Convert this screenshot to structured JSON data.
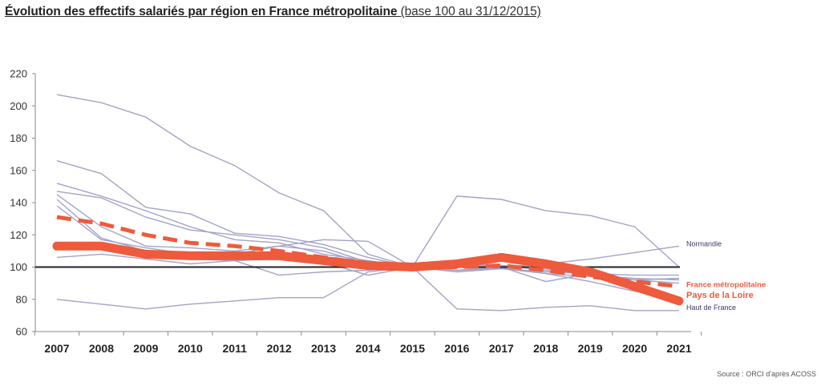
{
  "title": {
    "main": "Évolution des effectifs salariés par région en France métropolitaine",
    "sub": "(base 100 au 31/12/2015)"
  },
  "source": "Source : ORCI d'après ACOSS",
  "colors": {
    "region": "#a3a3c8",
    "highlight": "#ee5a3c",
    "baseline": "#222222",
    "label_region": "#3a3a6a"
  },
  "chart_data": {
    "type": "line",
    "x": [
      "2007",
      "2008",
      "2009",
      "2010",
      "2011",
      "2012",
      "2013",
      "2014",
      "2015",
      "2016",
      "2017",
      "2018",
      "2019",
      "2020",
      "2021"
    ],
    "ylim": [
      60,
      220
    ],
    "yticks": [
      60,
      80,
      100,
      120,
      140,
      160,
      180,
      200,
      220
    ],
    "grid": false,
    "reference_line": 100,
    "series": [
      {
        "name": "",
        "style": "region",
        "values": [
          207,
          202,
          193,
          175,
          163,
          146,
          135,
          108,
          100,
          97,
          99,
          96,
          94,
          92,
          93
        ]
      },
      {
        "name": "",
        "style": "region",
        "values": [
          166,
          158,
          137,
          133,
          121,
          119,
          114,
          106,
          100,
          144,
          142,
          135,
          132,
          125,
          100
        ]
      },
      {
        "name": "",
        "style": "region",
        "values": [
          152,
          144,
          135,
          125,
          117,
          115,
          108,
          104,
          100,
          98,
          99,
          97,
          96,
          95,
          95
        ]
      },
      {
        "name": "",
        "style": "region",
        "values": [
          147,
          143,
          131,
          123,
          120,
          117,
          112,
          103,
          100,
          102,
          101,
          99,
          95,
          93,
          92
        ]
      },
      {
        "name": "",
        "style": "region",
        "values": [
          145,
          125,
          113,
          112,
          110,
          113,
          110,
          102,
          100,
          101,
          101,
          98,
          95,
          92,
          93
        ]
      },
      {
        "name": "",
        "style": "region",
        "values": [
          142,
          118,
          110,
          105,
          104,
          95,
          97,
          98,
          100,
          98,
          100,
          91,
          96,
          92,
          90
        ]
      },
      {
        "name": "",
        "style": "region",
        "values": [
          138,
          117,
          112,
          108,
          108,
          113,
          117,
          116,
          100,
          74,
          73,
          75,
          76,
          73,
          73
        ]
      },
      {
        "name": "Normandie",
        "style": "region",
        "values": [
          106,
          108,
          105,
          102,
          104,
          105,
          103,
          95,
          100,
          103,
          100,
          102,
          105,
          109,
          113
        ]
      },
      {
        "name": "Haut de France",
        "style": "region",
        "values": [
          80,
          77,
          74,
          77,
          79,
          81,
          81,
          97,
          100,
          98,
          100,
          96,
          91,
          85,
          80
        ]
      },
      {
        "name": "France métropolitaine",
        "style": "dashed",
        "values": [
          131,
          127,
          120,
          115,
          113,
          110,
          106,
          102,
          100,
          100,
          101,
          98,
          94,
          91,
          88
        ]
      },
      {
        "name": "Pays de la Loire",
        "style": "thick",
        "values": [
          113,
          113,
          108,
          107,
          107,
          107,
          104,
          101,
          100,
          102,
          106,
          102,
          97,
          88,
          79
        ]
      }
    ]
  }
}
